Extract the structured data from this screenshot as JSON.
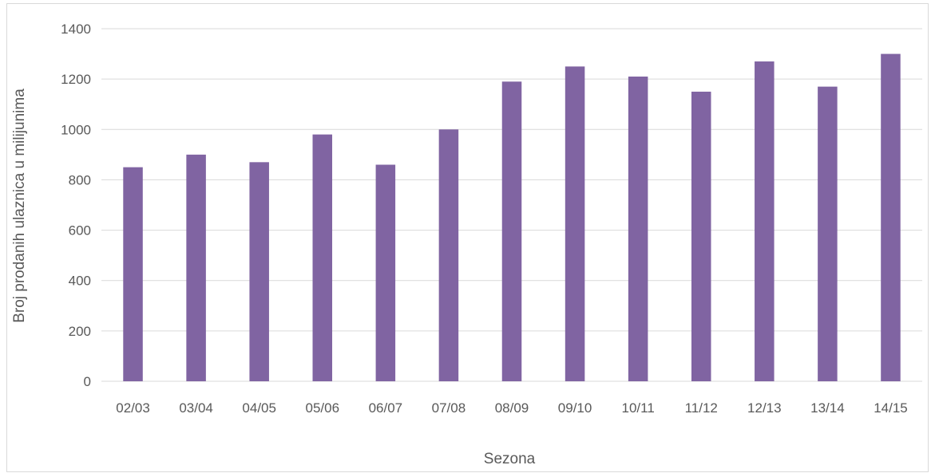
{
  "chart_data": {
    "type": "bar",
    "title": "",
    "xlabel": "Sezona",
    "ylabel": "Broj prodanih ulaznica u milijunima",
    "categories": [
      "02/03",
      "03/04",
      "04/05",
      "05/06",
      "06/07",
      "07/08",
      "08/09",
      "09/10",
      "10/11",
      "11/12",
      "12/13",
      "13/14",
      "14/15"
    ],
    "values": [
      850,
      900,
      870,
      980,
      860,
      1000,
      1190,
      1250,
      1210,
      1150,
      1270,
      1170,
      1300
    ],
    "ylim": [
      0,
      1400
    ],
    "yticks": [
      "0",
      "200",
      "400",
      "600",
      "800",
      "1000",
      "1200",
      "1400"
    ],
    "grid": true,
    "legend": "none",
    "colors": {
      "bar": "#8064a2",
      "grid": "#d9d9d9",
      "text": "#595959"
    }
  }
}
